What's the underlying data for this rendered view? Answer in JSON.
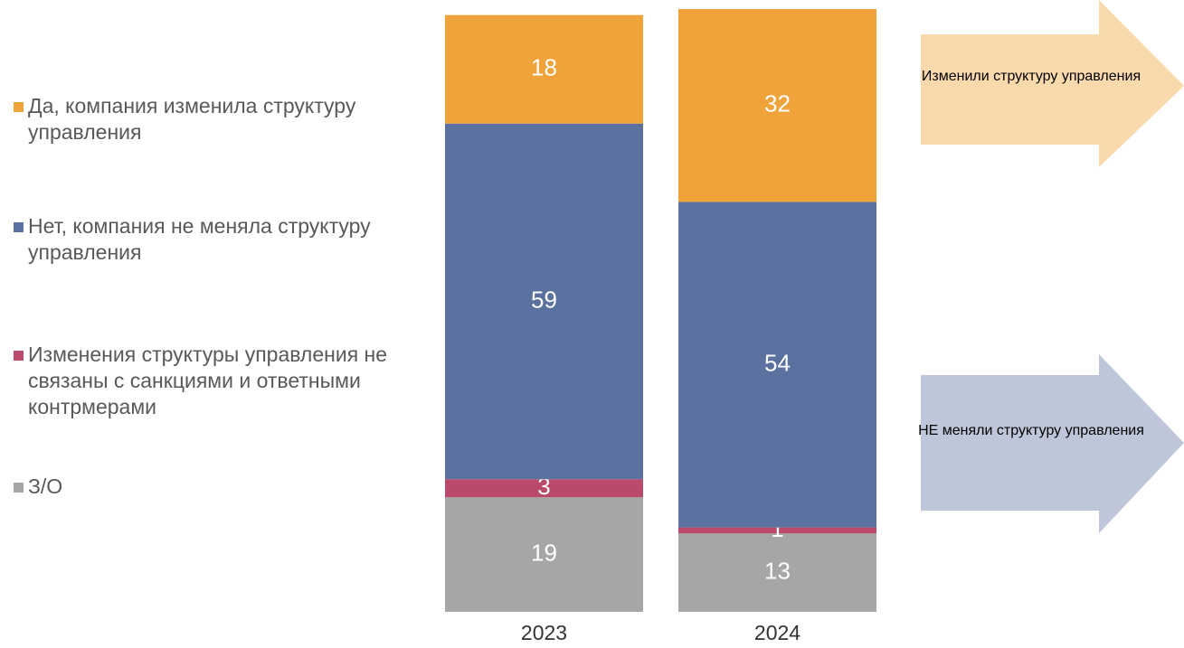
{
  "chart_data": {
    "type": "stacked_bar",
    "categories": [
      "2023",
      "2024"
    ],
    "series": [
      {
        "name": "З/О",
        "color": "#a6a6a6",
        "values": [
          19,
          13
        ]
      },
      {
        "name": "Изменения структуры управления не связаны с санкциями и ответными контрмерами",
        "color": "#b94a6b",
        "values": [
          3,
          1
        ]
      },
      {
        "name": "Нет, компания не меняла структуру управления",
        "color": "#5b71a0",
        "values": [
          59,
          54
        ]
      },
      {
        "name": "Да, компания изменила структуру управления",
        "color": "#f0a33a",
        "values": [
          18,
          32
        ]
      }
    ],
    "ylim": [
      0,
      100
    ],
    "annotations": [
      {
        "text": "Изменили структуру управления",
        "color": "#fad9ac"
      },
      {
        "text": "НЕ меняли структуру управления",
        "color": "#bec6d9"
      }
    ]
  }
}
